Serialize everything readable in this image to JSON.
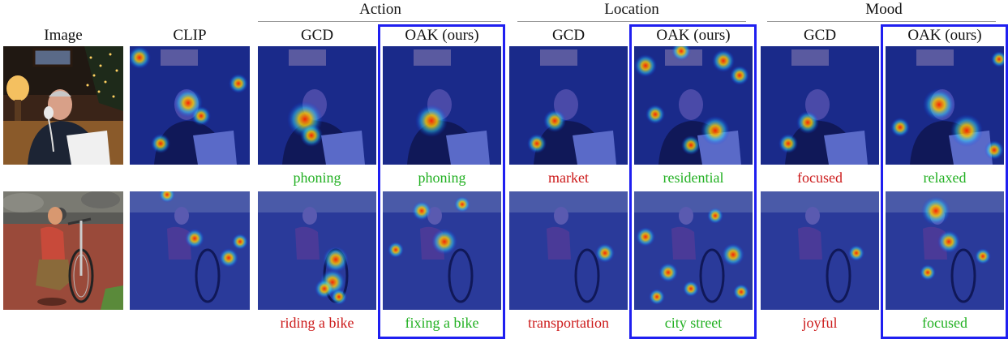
{
  "groups": [
    {
      "label": "Action"
    },
    {
      "label": "Location"
    },
    {
      "label": "Mood"
    }
  ],
  "column_headers": [
    "Image",
    "CLIP",
    "GCD",
    "OAK (ours)",
    "GCD",
    "OAK (ours)",
    "GCD",
    "OAK (ours)"
  ],
  "rows": [
    {
      "scene": "man-on-phone",
      "labels": [
        {
          "text": "phoning",
          "correct": true
        },
        {
          "text": "phoning",
          "correct": true
        },
        {
          "text": "market",
          "correct": false
        },
        {
          "text": "residential",
          "correct": true
        },
        {
          "text": "focused",
          "correct": false
        },
        {
          "text": "relaxed",
          "correct": true
        }
      ]
    },
    {
      "scene": "man-with-bike",
      "labels": [
        {
          "text": "riding a bike",
          "correct": false
        },
        {
          "text": "fixing a bike",
          "correct": true
        },
        {
          "text": "transportation",
          "correct": false
        },
        {
          "text": "city street",
          "correct": true
        },
        {
          "text": "joyful",
          "correct": false
        },
        {
          "text": "focused",
          "correct": true
        }
      ]
    }
  ],
  "colors": {
    "correct": "#22b022",
    "incorrect": "#cc1a1a",
    "highlight_box": "#1f1ff0"
  }
}
